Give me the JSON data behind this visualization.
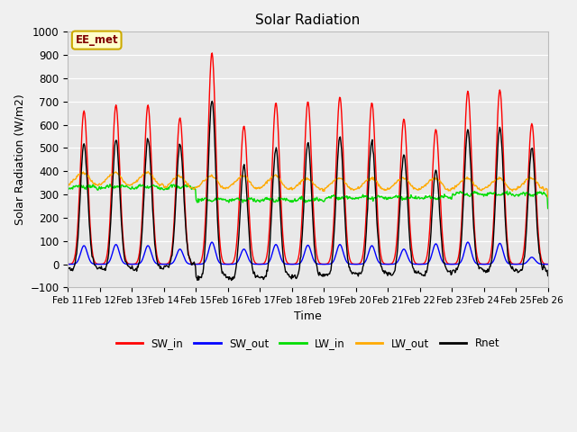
{
  "title": "Solar Radiation",
  "xlabel": "Time",
  "ylabel": "Solar Radiation (W/m2)",
  "ylim": [
    -100,
    1000
  ],
  "xlim": [
    0,
    360
  ],
  "fig_bg": "#f0f0f0",
  "plot_bg": "#e8e8e8",
  "annotation": "EE_met",
  "series": {
    "SW_in": {
      "color": "#ff0000",
      "lw": 1.0
    },
    "SW_out": {
      "color": "#0000ff",
      "lw": 1.0
    },
    "LW_in": {
      "color": "#00dd00",
      "lw": 1.0
    },
    "LW_out": {
      "color": "#ffaa00",
      "lw": 1.0
    },
    "Rnet": {
      "color": "#000000",
      "lw": 1.0
    }
  },
  "x_tick_labels": [
    "Feb 11",
    "Feb 12",
    "Feb 13",
    "Feb 14",
    "Feb 15",
    "Feb 16",
    "Feb 17",
    "Feb 18",
    "Feb 19",
    "Feb 20",
    "Feb 21",
    "Feb 22",
    "Feb 23",
    "Feb 24",
    "Feb 25",
    "Feb 26"
  ],
  "x_tick_positions": [
    0,
    24,
    48,
    72,
    96,
    120,
    144,
    168,
    192,
    216,
    240,
    264,
    288,
    312,
    336,
    360
  ],
  "sw_in_peaks": [
    660,
    685,
    685,
    630,
    910,
    595,
    695,
    700,
    720,
    695,
    625,
    580,
    745,
    750,
    605,
    0
  ],
  "sw_out_peaks": [
    80,
    85,
    80,
    65,
    95,
    65,
    85,
    82,
    85,
    80,
    65,
    88,
    95,
    90,
    30,
    0
  ],
  "lw_segments": [
    {
      "start": 0,
      "end": 96,
      "base": 340,
      "amp": 15
    },
    {
      "start": 96,
      "end": 192,
      "base": 285,
      "amp": 12
    },
    {
      "start": 192,
      "end": 288,
      "base": 295,
      "amp": 12
    },
    {
      "start": 288,
      "end": 360,
      "base": 310,
      "amp": 12
    }
  ],
  "lw_out_segments": [
    {
      "start": 0,
      "end": 72,
      "base": 360,
      "amp": 20
    },
    {
      "start": 72,
      "end": 168,
      "base": 345,
      "amp": 20
    },
    {
      "start": 168,
      "end": 360,
      "base": 338,
      "amp": 18
    }
  ],
  "night_rnet": -55
}
